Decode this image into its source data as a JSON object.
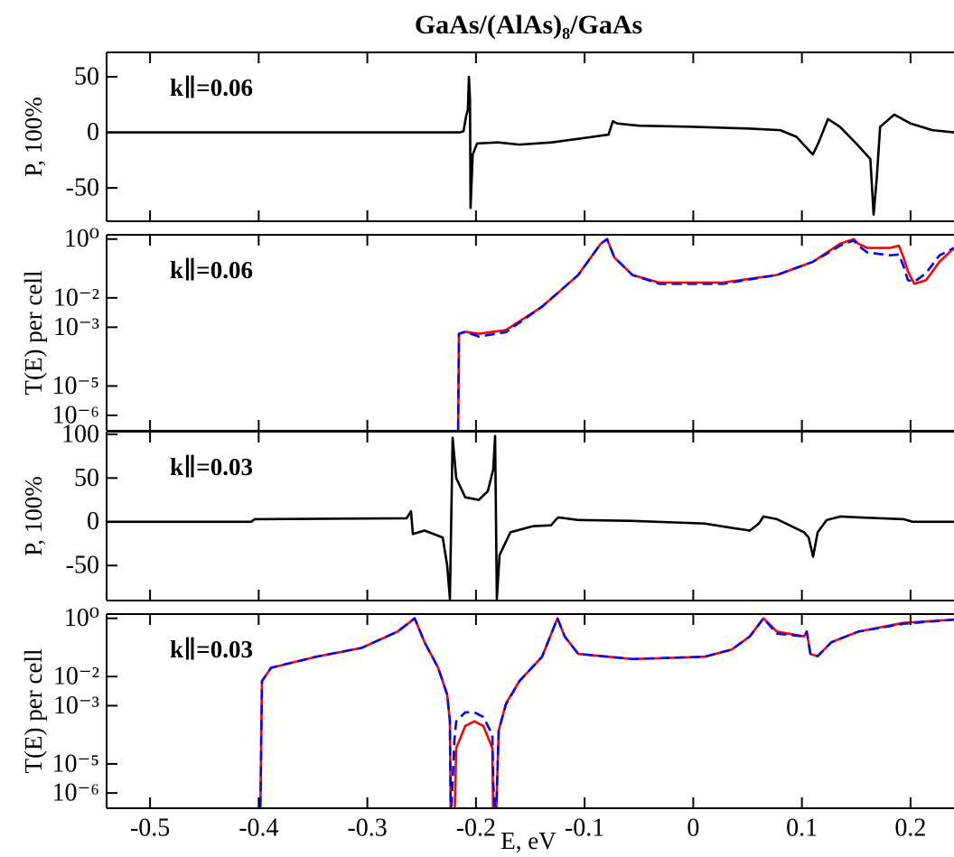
{
  "chart_data": [
    {
      "type": "line",
      "title": "GaAs/(AlAs)₈/GaAs",
      "annotation": "k∥=0.06",
      "ylabel": "P, 100%",
      "xlim": [
        -0.54,
        0.24
      ],
      "xticks": [
        -0.5,
        -0.4,
        -0.3,
        -0.2,
        -0.1,
        0,
        0.1,
        0.2
      ],
      "ylim": [
        -80,
        72
      ],
      "yticks": [
        -50,
        0,
        50
      ],
      "x": [
        -0.54,
        -0.3,
        -0.215,
        -0.2115,
        -0.209,
        -0.2075,
        -0.2065,
        -0.2055,
        -0.205,
        -0.203,
        -0.199,
        -0.18,
        -0.16,
        -0.13,
        -0.1,
        -0.078,
        -0.074,
        -0.07,
        -0.05,
        0,
        0.05,
        0.08,
        0.095,
        0.11,
        0.115,
        0.124,
        0.135,
        0.15,
        0.163,
        0.166,
        0.169,
        0.172,
        0.185,
        0.2,
        0.22,
        0.24
      ],
      "series": [
        {
          "color": "#000000",
          "dash": false,
          "values": [
            0,
            0,
            0,
            1,
            15,
            20,
            50,
            30,
            -68,
            -20,
            -10,
            -9,
            -11,
            -9,
            -5,
            -2,
            10,
            8,
            6,
            5,
            3.5,
            2,
            -4,
            -20,
            -10,
            12,
            5,
            -10,
            -24,
            -74,
            -40,
            5,
            16,
            8,
            2,
            0
          ]
        }
      ]
    },
    {
      "type": "line",
      "annotation": "k∥=0.06",
      "ylabel": "T(E) per cell",
      "yscale": "log",
      "xlim": [
        -0.54,
        0.24
      ],
      "xticks": [
        -0.5,
        -0.4,
        -0.3,
        -0.2,
        -0.1,
        0,
        0.1,
        0.2
      ],
      "ylim": [
        3e-07,
        1.4
      ],
      "yticks": [
        {
          "value": 1,
          "label": "10⁰"
        },
        {
          "value": 0.01,
          "label": "10⁻²"
        },
        {
          "value": 0.001,
          "label": "10⁻³"
        },
        {
          "value": 1e-05,
          "label": "10⁻⁵"
        },
        {
          "value": 1e-06,
          "label": "10⁻⁶"
        }
      ],
      "x": [
        -0.2165,
        -0.2157,
        -0.2099,
        -0.1974,
        -0.1724,
        -0.1392,
        -0.1059,
        -0.0851,
        -0.0793,
        -0.0727,
        -0.056,
        -0.0311,
        0.0272,
        0.077,
        0.1103,
        0.1353,
        0.1477,
        0.1519,
        0.1602,
        0.181,
        0.1893,
        0.1935,
        0.1976,
        0.2035,
        0.2143,
        0.2267,
        0.24
      ],
      "series": [
        {
          "color": "#ff0000",
          "dash": false,
          "values": [
            1e-07,
            0.0006,
            0.0007,
            0.0006,
            0.0008,
            0.005,
            0.06,
            0.7,
            1.0,
            0.24,
            0.06,
            0.033,
            0.033,
            0.06,
            0.17,
            0.7,
            1.0,
            0.7,
            0.5,
            0.5,
            0.6,
            0.24,
            0.08,
            0.03,
            0.04,
            0.17,
            0.5
          ]
        },
        {
          "color": "#0000ff",
          "dash": true,
          "values": [
            1e-07,
            0.0006,
            0.0007,
            0.00048,
            0.00068,
            0.005,
            0.06,
            0.7,
            1.0,
            0.24,
            0.06,
            0.03,
            0.03,
            0.06,
            0.17,
            0.6,
            0.9,
            0.6,
            0.35,
            0.28,
            0.3,
            0.12,
            0.04,
            0.035,
            0.07,
            0.28,
            0.5
          ]
        }
      ]
    },
    {
      "type": "line",
      "annotation": "k∥=0.03",
      "ylabel": "P, 100%",
      "xlim": [
        -0.54,
        0.24
      ],
      "xticks": [
        -0.5,
        -0.4,
        -0.3,
        -0.2,
        -0.1,
        0,
        0.1,
        0.2
      ],
      "ylim": [
        -90,
        103
      ],
      "yticks": [
        -50,
        0,
        50,
        100
      ],
      "x": [
        -0.54,
        -0.407,
        -0.4036,
        -0.2639,
        -0.2598,
        -0.2581,
        -0.2473,
        -0.2306,
        -0.2265,
        -0.224,
        -0.2215,
        -0.2182,
        -0.2099,
        -0.1974,
        -0.1891,
        -0.1841,
        -0.1824,
        -0.1808,
        -0.1783,
        -0.1683,
        -0.1475,
        -0.1309,
        -0.1267,
        -0.1242,
        -0.1059,
        -0.056,
        0.0105,
        0.0355,
        0.0521,
        0.0604,
        0.0646,
        0.077,
        0.102,
        0.1062,
        0.1103,
        0.1145,
        0.1228,
        0.1353,
        0.1519,
        0.1935,
        0.2018,
        0.24
      ],
      "series": [
        {
          "color": "#000000",
          "dash": false,
          "values": [
            0,
            0,
            3,
            4,
            12,
            -14,
            -10,
            -18,
            -50,
            -88,
            96,
            50,
            28,
            25,
            35,
            60,
            98,
            -88,
            -38,
            -12,
            -5,
            -4,
            2,
            5,
            2,
            1,
            -2,
            -7,
            -10,
            -2,
            6,
            3,
            -12,
            -18,
            -40,
            -12,
            2,
            6,
            5,
            3,
            0,
            0
          ]
        }
      ]
    },
    {
      "type": "line",
      "annotation": "k∥=0.03",
      "ylabel": "T(E) per cell",
      "xlabel": "E, eV",
      "yscale": "log",
      "xlim": [
        -0.54,
        0.24
      ],
      "xticks": [
        -0.5,
        -0.4,
        -0.3,
        -0.2,
        -0.1,
        0,
        0.1,
        0.2
      ],
      "ylim": [
        3e-07,
        1.4
      ],
      "yticks": [
        {
          "value": 1,
          "label": "10⁰"
        },
        {
          "value": 0.01,
          "label": "10⁻²"
        },
        {
          "value": 0.001,
          "label": "10⁻³"
        },
        {
          "value": 1e-05,
          "label": "10⁻⁵"
        },
        {
          "value": 1e-06,
          "label": "10⁻⁶"
        }
      ],
      "x": [
        -0.3986,
        -0.397,
        -0.3886,
        -0.3471,
        -0.3055,
        -0.2722,
        -0.2564,
        -0.2473,
        -0.2348,
        -0.2265,
        -0.224,
        -0.2232,
        -0.2198,
        -0.2182,
        -0.2099,
        -0.2015,
        -0.1932,
        -0.1849,
        -0.1841,
        -0.1816,
        -0.1791,
        -0.1724,
        -0.16,
        -0.1392,
        -0.125,
        -0.1184,
        -0.1059,
        -0.056,
        0.0105,
        0.0355,
        0.0521,
        0.0646,
        0.077,
        0.102,
        0.1045,
        0.1078,
        0.1145,
        0.127,
        0.1519,
        0.1935,
        0.24
      ],
      "series": [
        {
          "color": "#ff0000",
          "dash": false,
          "values": [
            1e-07,
            0.007,
            0.02,
            0.048,
            0.096,
            0.35,
            1.0,
            0.15,
            0.02,
            0.0024,
            0.00029,
            1e-07,
            1e-07,
            3.5e-05,
            0.0002,
            0.00029,
            0.0002,
            3.5e-05,
            1e-07,
            1e-07,
            0.00014,
            0.0012,
            0.007,
            0.048,
            1.0,
            0.24,
            0.06,
            0.04,
            0.048,
            0.085,
            0.24,
            1.0,
            0.35,
            0.24,
            0.35,
            0.06,
            0.05,
            0.15,
            0.35,
            0.7,
            0.9
          ]
        },
        {
          "color": "#0000ff",
          "dash": true,
          "values": [
            1e-07,
            0.007,
            0.02,
            0.048,
            0.096,
            0.35,
            1.0,
            0.15,
            0.02,
            0.0024,
            0.0003,
            1e-07,
            7e-05,
            0.00029,
            0.00059,
            0.00059,
            0.00041,
            0.0001,
            2e-06,
            1e-07,
            0.00014,
            0.0011,
            0.007,
            0.048,
            1.0,
            0.24,
            0.06,
            0.04,
            0.048,
            0.085,
            0.24,
            1.0,
            0.3,
            0.24,
            0.35,
            0.06,
            0.05,
            0.15,
            0.35,
            0.65,
            0.9
          ]
        }
      ]
    }
  ]
}
